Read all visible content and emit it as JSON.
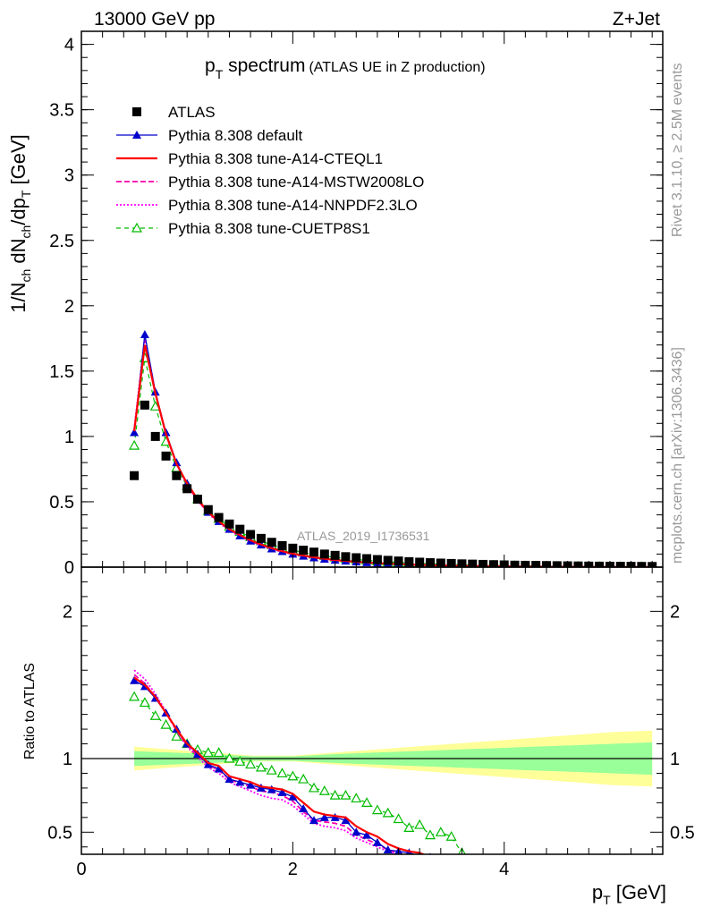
{
  "header": {
    "energy": "13000 GeV pp",
    "process": "Z+Jet"
  },
  "side_text": {
    "rivet": "Rivet 3.1.10, ≥ 2.5M events",
    "source": "mcplots.cern.ch [arXiv:1306.3436]"
  },
  "colors": {
    "atlas": "#000000",
    "default": "#0000cc",
    "cteql1": "#ff0000",
    "mstw": "#ff00aa",
    "nnpdf": "#ff00ff",
    "cuetp8s1": "#00bb00",
    "band_outer": "#ffff99",
    "band_inner": "#99ff99"
  },
  "chart_data": [
    {
      "type": "scatter",
      "title_main": "p",
      "title_sub": "T",
      "title_rest": " spectrum",
      "title_note": "(ATLAS UE in Z production)",
      "watermark": "ATLAS_2019_I1736531",
      "ylabel": "1/N_ch dN_ch/dp_T [GeV]",
      "xlim": [
        0,
        5.5
      ],
      "ylim": [
        0,
        4.1
      ],
      "y_ticks": [
        "0",
        "0.5",
        "1",
        "1.5",
        "2",
        "2.5",
        "3",
        "3.5",
        "4"
      ],
      "x": [
        0.5,
        0.6,
        0.7,
        0.8,
        0.9,
        1.0,
        1.1,
        1.2,
        1.3,
        1.4,
        1.5,
        1.6,
        1.7,
        1.8,
        1.9,
        2.0,
        2.1,
        2.2,
        2.3,
        2.4,
        2.5,
        2.6,
        2.7,
        2.8,
        2.9,
        3.0,
        3.1,
        3.2,
        3.3,
        3.4,
        3.5,
        3.6,
        3.7,
        3.8,
        3.9,
        4.0,
        4.1,
        4.2,
        4.3,
        4.4,
        4.5,
        4.6,
        4.7,
        4.8,
        4.9,
        5.0,
        5.1,
        5.2,
        5.3,
        5.4
      ],
      "legend": [
        {
          "label": "ATLAS",
          "key": "atlas"
        },
        {
          "label": "Pythia 8.308 default",
          "key": "default"
        },
        {
          "label": "Pythia 8.308 tune-A14-CTEQL1",
          "key": "cteql1"
        },
        {
          "label": "Pythia 8.308 tune-A14-MSTW2008LO",
          "key": "mstw"
        },
        {
          "label": "Pythia 8.308 tune-A14-NNPDF2.3LO",
          "key": "nnpdf"
        },
        {
          "label": "Pythia 8.308 tune-CUETP8S1",
          "key": "cuetp8s1"
        }
      ],
      "series": [
        {
          "name": "ATLAS",
          "key": "atlas",
          "values": [
            0.7,
            1.24,
            1.0,
            0.85,
            0.7,
            0.6,
            0.52,
            0.44,
            0.38,
            0.33,
            0.29,
            0.25,
            0.22,
            0.19,
            0.165,
            0.145,
            0.13,
            0.115,
            0.1,
            0.09,
            0.08,
            0.072,
            0.065,
            0.058,
            0.052,
            0.047,
            0.042,
            0.038,
            0.034,
            0.031,
            0.028,
            0.025,
            0.023,
            0.021,
            0.019,
            0.017,
            0.015,
            0.014,
            0.013,
            0.012,
            0.011,
            0.01,
            0.009,
            0.008,
            0.0075,
            0.007,
            0.0065,
            0.006,
            0.0055,
            0.005
          ]
        },
        {
          "name": "Pythia 8.308 default",
          "key": "default",
          "values": [
            1.03,
            1.78,
            1.34,
            1.03,
            0.8,
            0.64,
            0.52,
            0.42,
            0.35,
            0.29,
            0.24,
            0.2,
            0.17,
            0.14,
            0.12,
            0.1,
            0.085,
            0.072,
            0.062,
            0.054,
            0.047,
            0.04,
            0.035,
            0.03,
            0.026,
            0.022,
            0.019,
            0.016,
            0.014,
            0.012,
            0.01,
            0.009,
            0.008,
            0.007,
            0.006,
            0.005,
            0.0045,
            0.004,
            0.0035,
            0.003,
            0.0027,
            0.0024,
            0.0021,
            0.0019,
            0.0017,
            0.0015,
            0.0013,
            0.0012,
            0.0011,
            0.001
          ]
        },
        {
          "name": "Pythia 8.308 tune-A14-CTEQL1",
          "key": "cteql1",
          "values": [
            1.04,
            1.7,
            1.33,
            1.02,
            0.79,
            0.64,
            0.52,
            0.42,
            0.35,
            0.29,
            0.245,
            0.205,
            0.173,
            0.145,
            0.122,
            0.103,
            0.088,
            0.075,
            0.064,
            0.055,
            0.048,
            0.041,
            0.036,
            0.031,
            0.027,
            0.023,
            0.02,
            0.017,
            0.015,
            0.013,
            0.011,
            0.0095,
            0.0083,
            0.0073,
            0.0063,
            0.0055,
            0.0048,
            0.0042,
            0.0037,
            0.0032,
            0.0028,
            0.0025,
            0.0022,
            0.0019,
            0.0017,
            0.0015,
            0.0013,
            0.0012,
            0.0011,
            0.001
          ]
        },
        {
          "name": "Pythia 8.308 tune-A14-MSTW2008LO",
          "key": "mstw",
          "values": [
            1.05,
            1.74,
            1.33,
            1.02,
            0.79,
            0.63,
            0.51,
            0.42,
            0.34,
            0.29,
            0.24,
            0.2,
            0.17,
            0.14,
            0.12,
            0.1,
            0.086,
            0.073,
            0.062,
            0.053,
            0.046,
            0.04,
            0.034,
            0.03,
            0.026,
            0.022,
            0.019,
            0.016,
            0.014,
            0.012,
            0.01,
            0.009,
            0.008,
            0.007,
            0.006,
            0.005,
            0.0045,
            0.004,
            0.0035,
            0.003,
            0.0027,
            0.0024,
            0.0021,
            0.0019,
            0.0017,
            0.0015,
            0.0013,
            0.0012,
            0.0011,
            0.001
          ]
        },
        {
          "name": "Pythia 8.308 tune-A14-NNPDF2.3LO",
          "key": "nnpdf",
          "values": [
            1.06,
            1.76,
            1.34,
            1.02,
            0.79,
            0.63,
            0.51,
            0.41,
            0.34,
            0.28,
            0.235,
            0.195,
            0.165,
            0.138,
            0.116,
            0.098,
            0.083,
            0.07,
            0.06,
            0.051,
            0.044,
            0.038,
            0.033,
            0.028,
            0.024,
            0.021,
            0.018,
            0.015,
            0.013,
            0.011,
            0.0095,
            0.0083,
            0.0073,
            0.0063,
            0.0055,
            0.0048,
            0.0042,
            0.0037,
            0.0032,
            0.0028,
            0.0025,
            0.0022,
            0.0019,
            0.0017,
            0.0015,
            0.0013,
            0.0012,
            0.0011,
            0.001,
            0.0009
          ]
        },
        {
          "name": "Pythia 8.308 tune-CUETP8S1",
          "key": "cuetp8s1",
          "values": [
            0.93,
            1.6,
            1.23,
            0.96,
            0.76,
            0.62,
            0.52,
            0.43,
            0.37,
            0.31,
            0.27,
            0.23,
            0.2,
            0.17,
            0.15,
            0.13,
            0.112,
            0.097,
            0.085,
            0.075,
            0.066,
            0.058,
            0.052,
            0.046,
            0.041,
            0.036,
            0.032,
            0.029,
            0.026,
            0.023,
            0.02,
            0.018,
            0.016,
            0.014,
            0.013,
            0.011,
            0.01,
            0.009,
            0.008,
            0.0072,
            0.0065,
            0.0058,
            0.0052,
            0.0047,
            0.0042,
            0.0038,
            0.0034,
            0.0031,
            0.0028,
            0.0025
          ]
        }
      ]
    },
    {
      "type": "line",
      "ylabel": "Ratio to ATLAS",
      "xlabel_main": "p",
      "xlabel_sub": "T",
      "xlabel_rest": " [GeV]",
      "xlim": [
        0,
        5.5
      ],
      "ylim": [
        0.35,
        2.3
      ],
      "x_ticks": [
        "0",
        "2",
        "4"
      ],
      "y_ticks": [
        "0.5",
        "1",
        "2"
      ],
      "band_x": [
        0.5,
        5.4
      ],
      "band_outer_half_width": [
        0.08,
        0.06,
        0.04,
        0.02,
        0.02,
        0.04,
        0.06,
        0.08,
        0.1,
        0.12,
        0.14,
        0.16,
        0.18,
        0.19
      ],
      "band_inner_half_width": [
        0.05,
        0.04,
        0.03,
        0.015,
        0.015,
        0.03,
        0.04,
        0.05,
        0.06,
        0.07,
        0.08,
        0.09,
        0.1,
        0.11
      ],
      "series": [
        {
          "name": "Pythia 8.308 default",
          "key": "default",
          "x": [
            0.5,
            0.6,
            0.7,
            0.8,
            0.9,
            1.0,
            1.1,
            1.2,
            1.3,
            1.4,
            1.5,
            1.6,
            1.7,
            1.8,
            1.9,
            2.0,
            2.1,
            2.2,
            2.3,
            2.4,
            2.5,
            2.6,
            2.7,
            2.8,
            2.9,
            3.0,
            3.1,
            3.2,
            3.3
          ],
          "values": [
            1.53,
            1.49,
            1.41,
            1.31,
            1.2,
            1.1,
            1.03,
            0.96,
            0.93,
            0.86,
            0.84,
            0.82,
            0.8,
            0.79,
            0.77,
            0.74,
            0.66,
            0.58,
            0.6,
            0.6,
            0.58,
            0.5,
            0.48,
            0.43,
            0.38,
            0.37,
            0.36,
            0.34,
            0.33
          ]
        },
        {
          "name": "Pythia 8.308 tune-A14-CTEQL1",
          "key": "cteql1",
          "x": [
            0.5,
            0.6,
            0.7,
            0.8,
            0.9,
            1.0,
            1.1,
            1.2,
            1.3,
            1.4,
            1.5,
            1.6,
            1.7,
            1.8,
            1.9,
            2.0,
            2.1,
            2.2,
            2.3,
            2.4,
            2.5,
            2.6,
            2.7,
            2.8,
            2.9,
            3.0,
            3.1,
            3.2,
            3.3
          ],
          "values": [
            1.55,
            1.5,
            1.42,
            1.31,
            1.2,
            1.1,
            1.04,
            0.97,
            0.95,
            0.88,
            0.86,
            0.84,
            0.81,
            0.8,
            0.79,
            0.76,
            0.7,
            0.64,
            0.62,
            0.61,
            0.6,
            0.54,
            0.5,
            0.47,
            0.42,
            0.39,
            0.37,
            0.36,
            0.33
          ]
        },
        {
          "name": "Pythia 8.308 tune-A14-MSTW2008LO",
          "key": "mstw",
          "x": [
            0.5,
            0.6,
            0.7,
            0.8,
            0.9,
            1.0,
            1.1,
            1.2,
            1.3,
            1.4,
            1.5,
            1.6,
            1.7,
            1.8,
            1.9,
            2.0,
            2.1,
            2.2,
            2.3,
            2.4,
            2.5,
            2.6,
            2.7,
            2.8,
            2.9,
            3.0,
            3.1,
            3.2
          ],
          "values": [
            1.57,
            1.51,
            1.42,
            1.31,
            1.19,
            1.09,
            1.02,
            0.96,
            0.92,
            0.86,
            0.83,
            0.81,
            0.78,
            0.77,
            0.75,
            0.71,
            0.64,
            0.58,
            0.57,
            0.56,
            0.54,
            0.48,
            0.45,
            0.42,
            0.38,
            0.36,
            0.34,
            0.33
          ]
        },
        {
          "name": "Pythia 8.308 tune-A14-NNPDF2.3LO",
          "key": "nnpdf",
          "x": [
            0.5,
            0.6,
            0.7,
            0.8,
            0.9,
            1.0,
            1.1,
            1.2,
            1.3,
            1.4,
            1.5,
            1.6,
            1.7,
            1.8,
            1.9,
            2.0,
            2.1,
            2.2,
            2.3,
            2.4,
            2.5,
            2.6,
            2.7,
            2.8,
            2.9,
            3.0,
            3.1
          ],
          "values": [
            1.6,
            1.54,
            1.44,
            1.32,
            1.19,
            1.08,
            1.01,
            0.94,
            0.9,
            0.84,
            0.81,
            0.78,
            0.75,
            0.73,
            0.72,
            0.68,
            0.62,
            0.56,
            0.54,
            0.53,
            0.51,
            0.46,
            0.43,
            0.4,
            0.37,
            0.35,
            0.33
          ]
        },
        {
          "name": "Pythia 8.308 tune-CUETP8S1",
          "key": "cuetp8s1",
          "x": [
            0.5,
            0.6,
            0.7,
            0.8,
            0.9,
            1.0,
            1.1,
            1.2,
            1.3,
            1.4,
            1.5,
            1.6,
            1.7,
            1.8,
            1.9,
            2.0,
            2.1,
            2.2,
            2.3,
            2.4,
            2.5,
            2.6,
            2.7,
            2.8,
            2.9,
            3.0,
            3.1,
            3.2,
            3.3,
            3.4,
            3.5,
            3.6
          ],
          "values": [
            1.42,
            1.38,
            1.29,
            1.23,
            1.15,
            1.1,
            1.06,
            1.04,
            1.04,
            1.0,
            0.98,
            0.96,
            0.94,
            0.92,
            0.9,
            0.88,
            0.86,
            0.8,
            0.78,
            0.75,
            0.75,
            0.73,
            0.7,
            0.65,
            0.63,
            0.59,
            0.53,
            0.55,
            0.48,
            0.5,
            0.47,
            0.36
          ]
        }
      ]
    }
  ]
}
